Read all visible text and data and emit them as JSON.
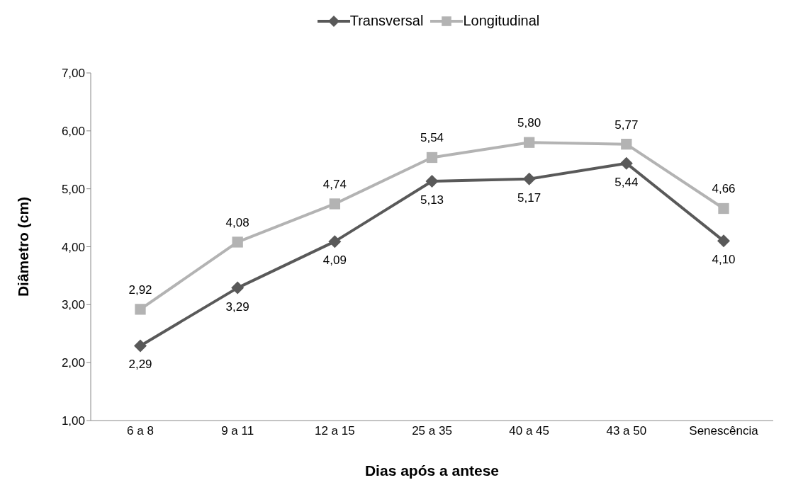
{
  "chart_data": {
    "type": "line",
    "xlabel": "Dias após a antese",
    "ylabel": "Diâmetro (cm)",
    "categories": [
      "6 a 8",
      "9 a 11",
      "12 a 15",
      "25 a 35",
      "40 a 45",
      "43 a 50",
      "Senescência"
    ],
    "series": [
      {
        "name": "Transversal",
        "color": "#595959",
        "marker": "diamond",
        "values": [
          2.29,
          3.29,
          4.09,
          5.13,
          5.17,
          5.44,
          4.1
        ],
        "value_labels": [
          "2,29",
          "3,29",
          "4,09",
          "5,13",
          "5,17",
          "5,44",
          "4,10"
        ]
      },
      {
        "name": "Longitudinal",
        "color": "#b3b3b3",
        "marker": "square",
        "values": [
          2.92,
          4.08,
          4.74,
          5.54,
          5.8,
          5.77,
          4.66
        ],
        "value_labels": [
          "2,92",
          "4,08",
          "4,74",
          "5,54",
          "5,80",
          "5,77",
          "4,66"
        ]
      }
    ],
    "ylim": [
      1,
      7
    ],
    "yticks": [
      {
        "value": 1,
        "label": "1,00"
      },
      {
        "value": 2,
        "label": "2,00"
      },
      {
        "value": 3,
        "label": "3,00"
      },
      {
        "value": 4,
        "label": "4,00"
      },
      {
        "value": 5,
        "label": "5,00"
      },
      {
        "value": 6,
        "label": "6,00"
      },
      {
        "value": 7,
        "label": "7,00"
      }
    ],
    "grid": false,
    "legend": "top",
    "line_style": "solid"
  }
}
